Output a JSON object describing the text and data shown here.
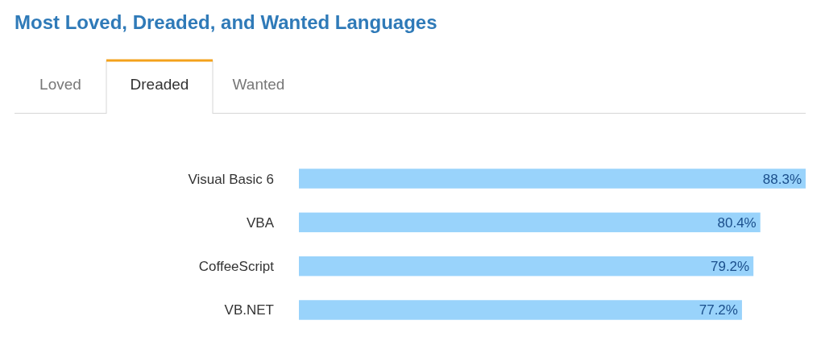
{
  "chart_data": {
    "type": "bar",
    "orientation": "horizontal",
    "title": "Most Loved, Dreaded, and Wanted Languages",
    "annotations": [
      "Loved",
      "Dreaded",
      "Wanted"
    ],
    "categories": [
      "Visual Basic 6",
      "VBA",
      "CoffeeScript",
      "VB.NET"
    ],
    "values": [
      88.3,
      80.4,
      79.2,
      77.2
    ],
    "value_labels": [
      "88.3%",
      "80.4%",
      "79.2%",
      "77.2%"
    ],
    "color": "#99d3fb"
  }
}
